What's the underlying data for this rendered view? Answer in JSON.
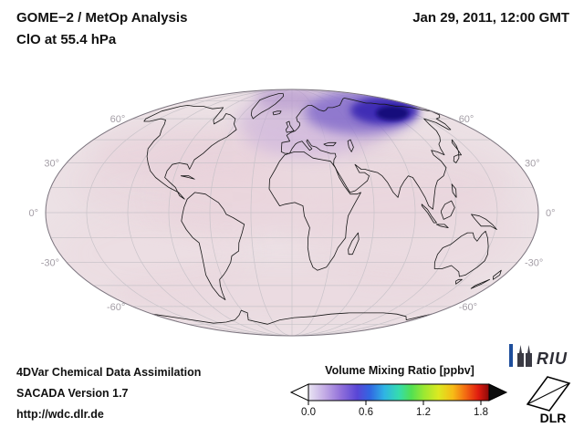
{
  "header": {
    "title_line1": "GOME−2 / MetOp Analysis",
    "title_line2": "ClO at 55.4 hPa",
    "datetime": "Jan 29, 2011, 12:00 GMT"
  },
  "map": {
    "projection": "Mollweide",
    "latitude_labels": [
      "60°",
      "30°",
      "0°",
      "-30°",
      "-60°"
    ]
  },
  "colorbar": {
    "title": "Volume Mixing Ratio [ppbv]",
    "ticks": [
      "0.0",
      "0.6",
      "1.2",
      "1.8"
    ]
  },
  "footer": {
    "line1": "4DVar Chemical Data Assimilation",
    "line2": "SACADA Version 1.7",
    "line3": "http://wdc.dlr.de"
  },
  "logos": {
    "riu_label": "RIU",
    "dlr_label": "DLR"
  },
  "colors": {
    "map_background": "#ece1e5",
    "blob_core": "#12077c",
    "colorbar_overflow": "#0d0d0d"
  },
  "chart_data": {
    "type": "heatmap",
    "title": "GOME−2 / MetOp Analysis — ClO at 55.4 hPa",
    "datetime": "Jan 29, 2011, 12:00 GMT",
    "projection": "Mollweide global map",
    "variable": "ClO volume mixing ratio",
    "units": "ppbv",
    "colorbar": {
      "label": "Volume Mixing Ratio [ppbv]",
      "min": 0.0,
      "max": 1.8,
      "ticks": [
        0.0,
        0.6,
        1.2,
        1.8
      ],
      "scheme": "pale lavender → violet → blue → cyan → green → yellow → orange → red → dark red, black overflow arrow"
    },
    "graticule": {
      "parallel_spacing_deg": 15,
      "meridian_spacing_deg": 30,
      "latitude_labels": [
        60,
        30,
        0,
        -30,
        -60
      ]
    },
    "regions": [
      {
        "region": "Arctic band from Scandinavia across northern Siberia (~60–80°N)",
        "value_ppbv": [
          0.5,
          0.8
        ],
        "note": "strong ClO enhancement, dark navy-blue core over Kara Sea / central Siberian Arctic"
      },
      {
        "region": "Northern Europe / North Atlantic high latitudes",
        "value_ppbv": [
          0.15,
          0.4
        ],
        "note": "violet-purple halo around the core"
      },
      {
        "region": "Rest of globe",
        "value_ppbv": [
          0.0,
          0.15
        ],
        "note": "pale pink background field with faint patchiness in the tropics and mid-latitudes"
      }
    ]
  }
}
